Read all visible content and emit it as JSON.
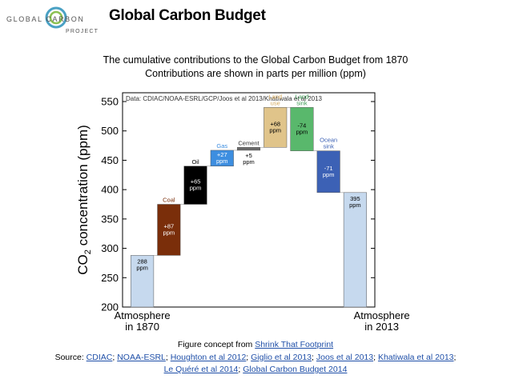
{
  "header": {
    "logo_line1": "GLOBAL CARBON",
    "logo_line2": "PROJECT",
    "title": "Global Carbon Budget"
  },
  "subtitle": {
    "line1": "The cumulative contributions to the Global Carbon Budget from 1870",
    "line2": "Contributions are shown in parts per million (ppm)"
  },
  "chart_data": {
    "type": "bar",
    "subtype": "waterfall",
    "data_source_label": "Data: CDIAC/NOAA-ESRL/GCP/Joos et al 2013/Khatiwala et al 2013",
    "ylabel_main": "CO",
    "ylabel_sub": "2",
    "ylabel_rest": " concentration (ppm)",
    "ylim": [
      200,
      565
    ],
    "yticks": [
      200,
      250,
      300,
      350,
      400,
      450,
      500,
      550
    ],
    "grid": false,
    "x_labels": [
      {
        "line1": "Atmosphere",
        "line2": "in 1870",
        "category_index": 0
      },
      {
        "line1": "Atmosphere",
        "line2": "in 2013",
        "category_index": 9
      }
    ],
    "bars": [
      {
        "name": "",
        "start": 200,
        "end": 288,
        "value_label": [
          "288",
          "ppm"
        ],
        "color": "#c6d9ee",
        "label_color": "#000000"
      },
      {
        "name": "Coal",
        "start": 288,
        "end": 375,
        "value_label": [
          "+87",
          "ppm"
        ],
        "color": "#7a2e0a",
        "label_color": "#ffffff"
      },
      {
        "name": "Oil",
        "start": 375,
        "end": 440,
        "value_label": [
          "+65",
          "ppm"
        ],
        "color": "#000000",
        "label_color": "#ffffff"
      },
      {
        "name": "Gas",
        "start": 440,
        "end": 467,
        "value_label": [
          "+27",
          "ppm"
        ],
        "color": "#3d8ee0",
        "label_color": "#ffffff"
      },
      {
        "name": "Cement",
        "start": 467,
        "end": 472,
        "value_label": [
          "+5",
          "ppm"
        ],
        "color": "#6b6b6b",
        "label_color": "#000000"
      },
      {
        "name": "Land use",
        "start": 472,
        "end": 540,
        "value_label": [
          "+68",
          "ppm"
        ],
        "color": "#e0c48a",
        "label_color": "#000000"
      },
      {
        "name": "Land sink",
        "start": 540,
        "end": 466,
        "value_label": [
          "-74",
          "ppm"
        ],
        "color": "#59b86c",
        "label_color": "#000000"
      },
      {
        "name": "Ocean sink",
        "start": 466,
        "end": 395,
        "value_label": [
          "-71",
          "ppm"
        ],
        "color": "#3c61b5",
        "label_color": "#ffffff"
      },
      {
        "name": "",
        "start": 200,
        "end": 395,
        "value_label": [
          "395",
          "ppm"
        ],
        "color": "#c6d9ee",
        "label_color": "#000000"
      }
    ],
    "name_colors": {
      "Coal": "#7a2e0a",
      "Oil": "#000000",
      "Gas": "#3d8ee0",
      "Cement": "#333333",
      "Land use": "#d4a85a",
      "Land sink": "#3a9a52",
      "Ocean sink": "#3c61b5"
    }
  },
  "footer": {
    "concept_prefix": "Figure concept from ",
    "concept_link": "Shrink That Footprint",
    "source_prefix": "Source: ",
    "sources_line1": [
      "CDIAC",
      "NOAA-ESRL",
      "Houghton et al 2012",
      "Giglio et al 2013",
      "Joos et al 2013",
      "Khatiwala et al 2013"
    ],
    "sources_line2": [
      "Le Quéré et al 2014",
      "Global Carbon Budget 2014"
    ]
  }
}
